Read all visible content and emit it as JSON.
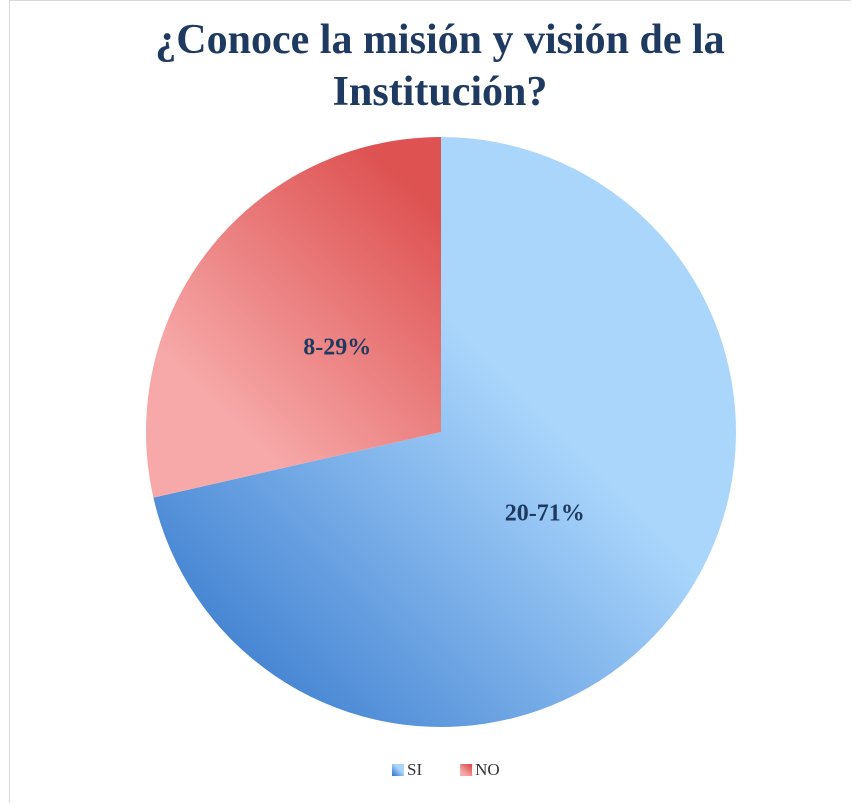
{
  "chart_data": {
    "type": "pie",
    "title": "¿Conoce la misión y visión de la Institución?",
    "categories": [
      "SI",
      "NO"
    ],
    "values": [
      20,
      8
    ],
    "value_labels": [
      "20-71%",
      "8-29%"
    ],
    "colors": [
      [
        "#3f7fd0",
        "#aad6fc"
      ],
      [
        "#f7a9a9",
        "#de5252"
      ]
    ],
    "legend": "bottom"
  }
}
